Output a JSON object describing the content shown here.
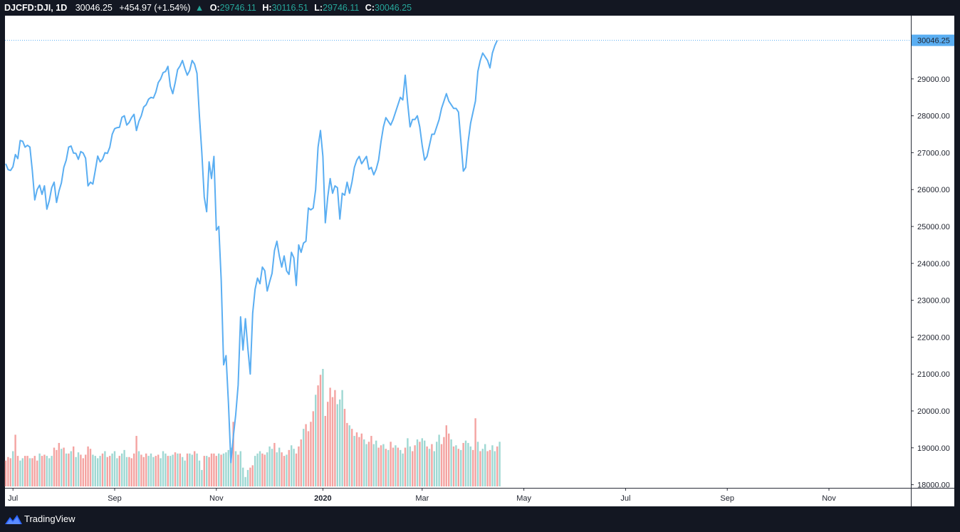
{
  "header": {
    "symbol": "DJCFD:DJI",
    "separator": ",",
    "timeframe": "1D",
    "last": "30046.25",
    "change": "+454.97 (+1.54%)",
    "o_label": "O:",
    "o_value": "29746.11",
    "h_label": "H:",
    "h_value": "30116.51",
    "l_label": "L:",
    "l_value": "29746.11",
    "c_label": "C:",
    "c_value": "30046.25"
  },
  "footer": {
    "brand": "TradingView",
    "logo_icon": "tradingview-logo-icon"
  },
  "colors": {
    "background": "#131722",
    "pane": "#ffffff",
    "line": "#5aaef2",
    "volume_up": "#9fd8d3",
    "volume_down": "#f4a3a1",
    "price_tag": "#5aaef2",
    "price_line": "#5aaef2",
    "axis_text": "#1e222d",
    "axis_line": "#2a2e39",
    "ohlc_value": "#26a69a"
  },
  "chart_data": {
    "type": "line",
    "series": [
      {
        "values": [
          26700,
          26540,
          26520,
          26620,
          26950,
          26840,
          27330,
          27310,
          27150,
          27200,
          27150,
          26510,
          25720,
          26000,
          26120,
          25870,
          26100,
          25470,
          25700,
          26050,
          26200,
          25650,
          25960,
          26180,
          26600,
          26800,
          27150,
          27180,
          26990,
          26980,
          26820,
          27030,
          26990,
          26850,
          26100,
          26200,
          26150,
          26520,
          26910,
          26750,
          26820,
          27000,
          26980,
          27150,
          27500,
          27650,
          27680,
          27690,
          27960,
          28000,
          27750,
          27820,
          27950,
          28040,
          27600,
          27850,
          28000,
          28240,
          28300,
          28450,
          28500,
          28480,
          28640,
          28900,
          29000,
          29170,
          29200,
          29340,
          28800,
          28600,
          28900,
          29250,
          29350,
          29500,
          29280,
          29100,
          29230,
          29500,
          29400,
          29150,
          28000,
          27000,
          25800,
          25400,
          26750,
          26300,
          26900,
          24900,
          25000,
          23550,
          21250,
          21500,
          20200,
          18600,
          19300,
          19900,
          20700,
          22550,
          21650,
          22500,
          21700,
          21000,
          22650,
          23300,
          23600,
          23450,
          23900,
          23800,
          23250,
          23500,
          23730,
          24350,
          24600,
          24200,
          23900,
          24200,
          23800,
          23700,
          24300,
          24150,
          23400,
          24500,
          24300,
          24550,
          24600,
          25500,
          25450,
          25500,
          26000,
          27150,
          27600,
          26900,
          25100,
          25800,
          26300,
          25900,
          26100,
          26050,
          25200,
          25900,
          25850,
          26200,
          25900,
          26200,
          26600,
          26800,
          26900,
          26700,
          26800,
          26900,
          26550,
          26600,
          26400,
          26550,
          26800,
          27300,
          27700,
          27950,
          27850,
          27750,
          27900,
          28100,
          28300,
          28500,
          28430,
          29100,
          28350,
          27700,
          27900,
          27900,
          28000,
          27700,
          27200,
          26800,
          26900,
          27200,
          27500,
          27500,
          27700,
          27900,
          28200,
          28400,
          28600,
          28400,
          28300,
          28200,
          28200,
          28100,
          27300,
          26500,
          26600,
          27300,
          27800,
          28100,
          28400,
          29200,
          29500,
          29700,
          29600,
          29500,
          29300,
          29700,
          29900,
          30046
        ]
      }
    ],
    "volume": [
      {
        "v": 0.22,
        "up": false
      },
      {
        "v": 0.25,
        "up": false
      },
      {
        "v": 0.24,
        "up": false
      },
      {
        "v": 0.3,
        "up": true
      },
      {
        "v": 0.44,
        "up": false
      },
      {
        "v": 0.26,
        "up": false
      },
      {
        "v": 0.22,
        "up": true
      },
      {
        "v": 0.24,
        "up": true
      },
      {
        "v": 0.26,
        "up": false
      },
      {
        "v": 0.26,
        "up": false
      },
      {
        "v": 0.24,
        "up": true
      },
      {
        "v": 0.24,
        "up": false
      },
      {
        "v": 0.26,
        "up": false
      },
      {
        "v": 0.22,
        "up": false
      },
      {
        "v": 0.28,
        "up": true
      },
      {
        "v": 0.26,
        "up": false
      },
      {
        "v": 0.27,
        "up": false
      },
      {
        "v": 0.26,
        "up": true
      },
      {
        "v": 0.24,
        "up": true
      },
      {
        "v": 0.26,
        "up": true
      },
      {
        "v": 0.33,
        "up": false
      },
      {
        "v": 0.31,
        "up": false
      },
      {
        "v": 0.37,
        "up": false
      },
      {
        "v": 0.32,
        "up": true
      },
      {
        "v": 0.33,
        "up": false
      },
      {
        "v": 0.28,
        "up": true
      },
      {
        "v": 0.28,
        "up": false
      },
      {
        "v": 0.3,
        "up": true
      },
      {
        "v": 0.34,
        "up": false
      },
      {
        "v": 0.25,
        "up": true
      },
      {
        "v": 0.29,
        "up": true
      },
      {
        "v": 0.27,
        "up": false
      },
      {
        "v": 0.24,
        "up": false
      },
      {
        "v": 0.27,
        "up": false
      },
      {
        "v": 0.34,
        "up": false
      },
      {
        "v": 0.32,
        "up": false
      },
      {
        "v": 0.27,
        "up": true
      },
      {
        "v": 0.26,
        "up": true
      },
      {
        "v": 0.24,
        "up": true
      },
      {
        "v": 0.26,
        "up": true
      },
      {
        "v": 0.28,
        "up": false
      },
      {
        "v": 0.3,
        "up": true
      },
      {
        "v": 0.25,
        "up": false
      },
      {
        "v": 0.26,
        "up": false
      },
      {
        "v": 0.28,
        "up": true
      },
      {
        "v": 0.3,
        "up": true
      },
      {
        "v": 0.24,
        "up": true
      },
      {
        "v": 0.26,
        "up": false
      },
      {
        "v": 0.28,
        "up": true
      },
      {
        "v": 0.31,
        "up": true
      },
      {
        "v": 0.25,
        "up": true
      },
      {
        "v": 0.25,
        "up": false
      },
      {
        "v": 0.24,
        "up": false
      },
      {
        "v": 0.28,
        "up": false
      },
      {
        "v": 0.43,
        "up": false
      },
      {
        "v": 0.3,
        "up": true
      },
      {
        "v": 0.27,
        "up": false
      },
      {
        "v": 0.25,
        "up": false
      },
      {
        "v": 0.28,
        "up": false
      },
      {
        "v": 0.26,
        "up": true
      },
      {
        "v": 0.28,
        "up": true
      },
      {
        "v": 0.25,
        "up": true
      },
      {
        "v": 0.26,
        "up": false
      },
      {
        "v": 0.27,
        "up": false
      },
      {
        "v": 0.24,
        "up": true
      },
      {
        "v": 0.3,
        "up": true
      },
      {
        "v": 0.28,
        "up": true
      },
      {
        "v": 0.26,
        "up": false
      },
      {
        "v": 0.26,
        "up": true
      },
      {
        "v": 0.27,
        "up": true
      },
      {
        "v": 0.29,
        "up": false
      },
      {
        "v": 0.28,
        "up": true
      },
      {
        "v": 0.28,
        "up": false
      },
      {
        "v": 0.25,
        "up": true
      },
      {
        "v": 0.22,
        "up": true
      },
      {
        "v": 0.28,
        "up": false
      },
      {
        "v": 0.28,
        "up": true
      },
      {
        "v": 0.27,
        "up": true
      },
      {
        "v": 0.3,
        "up": false
      },
      {
        "v": 0.28,
        "up": true
      },
      {
        "v": 0.22,
        "up": true
      },
      {
        "v": 0.14,
        "up": true
      },
      {
        "v": 0.26,
        "up": false
      },
      {
        "v": 0.26,
        "up": true
      },
      {
        "v": 0.25,
        "up": false
      },
      {
        "v": 0.28,
        "up": false
      },
      {
        "v": 0.28,
        "up": false
      },
      {
        "v": 0.26,
        "up": false
      },
      {
        "v": 0.28,
        "up": true
      },
      {
        "v": 0.27,
        "up": false
      },
      {
        "v": 0.28,
        "up": true
      },
      {
        "v": 0.29,
        "up": true
      },
      {
        "v": 0.31,
        "up": true
      },
      {
        "v": 0.33,
        "up": true
      },
      {
        "v": 0.55,
        "up": false
      },
      {
        "v": 0.3,
        "up": true
      },
      {
        "v": 0.27,
        "up": false
      },
      {
        "v": 0.3,
        "up": true
      },
      {
        "v": 0.16,
        "up": true
      },
      {
        "v": 0.08,
        "up": true
      },
      {
        "v": 0.14,
        "up": true
      },
      {
        "v": 0.16,
        "up": false
      },
      {
        "v": 0.18,
        "up": false
      },
      {
        "v": 0.26,
        "up": true
      },
      {
        "v": 0.28,
        "up": true
      },
      {
        "v": 0.3,
        "up": true
      },
      {
        "v": 0.28,
        "up": false
      },
      {
        "v": 0.27,
        "up": false
      },
      {
        "v": 0.29,
        "up": true
      },
      {
        "v": 0.34,
        "up": true
      },
      {
        "v": 0.32,
        "up": true
      },
      {
        "v": 0.37,
        "up": false
      },
      {
        "v": 0.29,
        "up": true
      },
      {
        "v": 0.33,
        "up": true
      },
      {
        "v": 0.29,
        "up": false
      },
      {
        "v": 0.26,
        "up": false
      },
      {
        "v": 0.27,
        "up": true
      },
      {
        "v": 0.31,
        "up": false
      },
      {
        "v": 0.35,
        "up": true
      },
      {
        "v": 0.32,
        "up": true
      },
      {
        "v": 0.28,
        "up": false
      },
      {
        "v": 0.34,
        "up": false
      },
      {
        "v": 0.4,
        "up": false
      },
      {
        "v": 0.49,
        "up": true
      },
      {
        "v": 0.53,
        "up": false
      },
      {
        "v": 0.47,
        "up": false
      },
      {
        "v": 0.55,
        "up": false
      },
      {
        "v": 0.64,
        "up": false
      },
      {
        "v": 0.78,
        "up": true
      },
      {
        "v": 0.86,
        "up": false
      },
      {
        "v": 0.95,
        "up": false
      },
      {
        "v": 1.0,
        "up": true
      },
      {
        "v": 0.6,
        "up": false
      },
      {
        "v": 0.72,
        "up": false
      },
      {
        "v": 0.84,
        "up": false
      },
      {
        "v": 0.76,
        "up": false
      },
      {
        "v": 0.82,
        "up": false
      },
      {
        "v": 0.7,
        "up": true
      },
      {
        "v": 0.74,
        "up": true
      },
      {
        "v": 0.82,
        "up": true
      },
      {
        "v": 0.66,
        "up": false
      },
      {
        "v": 0.54,
        "up": false
      },
      {
        "v": 0.52,
        "up": true
      },
      {
        "v": 0.49,
        "up": false
      },
      {
        "v": 0.43,
        "up": true
      },
      {
        "v": 0.46,
        "up": false
      },
      {
        "v": 0.42,
        "up": false
      },
      {
        "v": 0.45,
        "up": false
      },
      {
        "v": 0.4,
        "up": true
      },
      {
        "v": 0.36,
        "up": true
      },
      {
        "v": 0.38,
        "up": false
      },
      {
        "v": 0.43,
        "up": false
      },
      {
        "v": 0.36,
        "up": true
      },
      {
        "v": 0.39,
        "up": true
      },
      {
        "v": 0.33,
        "up": false
      },
      {
        "v": 0.35,
        "up": false
      },
      {
        "v": 0.36,
        "up": true
      },
      {
        "v": 0.32,
        "up": false
      },
      {
        "v": 0.31,
        "up": true
      },
      {
        "v": 0.38,
        "up": false
      },
      {
        "v": 0.33,
        "up": false
      },
      {
        "v": 0.35,
        "up": true
      },
      {
        "v": 0.33,
        "up": false
      },
      {
        "v": 0.31,
        "up": true
      },
      {
        "v": 0.28,
        "up": true
      },
      {
        "v": 0.33,
        "up": false
      },
      {
        "v": 0.41,
        "up": true
      },
      {
        "v": 0.34,
        "up": true
      },
      {
        "v": 0.3,
        "up": false
      },
      {
        "v": 0.35,
        "up": false
      },
      {
        "v": 0.4,
        "up": true
      },
      {
        "v": 0.38,
        "up": false
      },
      {
        "v": 0.41,
        "up": true
      },
      {
        "v": 0.39,
        "up": true
      },
      {
        "v": 0.34,
        "up": false
      },
      {
        "v": 0.32,
        "up": true
      },
      {
        "v": 0.36,
        "up": false
      },
      {
        "v": 0.3,
        "up": true
      },
      {
        "v": 0.38,
        "up": true
      },
      {
        "v": 0.44,
        "up": true
      },
      {
        "v": 0.36,
        "up": false
      },
      {
        "v": 0.42,
        "up": false
      },
      {
        "v": 0.52,
        "up": false
      },
      {
        "v": 0.45,
        "up": false
      },
      {
        "v": 0.4,
        "up": true
      },
      {
        "v": 0.34,
        "up": false
      },
      {
        "v": 0.35,
        "up": true
      },
      {
        "v": 0.32,
        "up": false
      },
      {
        "v": 0.31,
        "up": true
      },
      {
        "v": 0.37,
        "up": false
      },
      {
        "v": 0.39,
        "up": true
      },
      {
        "v": 0.37,
        "up": true
      },
      {
        "v": 0.34,
        "up": true
      },
      {
        "v": 0.31,
        "up": false
      },
      {
        "v": 0.58,
        "up": false
      },
      {
        "v": 0.38,
        "up": true
      },
      {
        "v": 0.3,
        "up": false
      },
      {
        "v": 0.32,
        "up": true
      },
      {
        "v": 0.36,
        "up": true
      },
      {
        "v": 0.3,
        "up": false
      },
      {
        "v": 0.31,
        "up": false
      },
      {
        "v": 0.35,
        "up": true
      },
      {
        "v": 0.3,
        "up": true
      },
      {
        "v": 0.34,
        "up": false
      },
      {
        "v": 0.38,
        "up": true
      }
    ],
    "x_ticks": [
      {
        "label": "Jul",
        "i": 3,
        "bold": false
      },
      {
        "label": "Sep",
        "i": 45,
        "bold": false
      },
      {
        "label": "Nov",
        "i": 87,
        "bold": false
      },
      {
        "label": "2020",
        "i": 131,
        "bold": true
      },
      {
        "label": "Mar",
        "i": 172,
        "bold": false
      },
      {
        "label": "May",
        "i": 214,
        "bold": false
      },
      {
        "label": "Jul",
        "i": 256,
        "bold": false
      },
      {
        "label": "Sep",
        "i": 298,
        "bold": false
      },
      {
        "label": "Nov",
        "i": 340,
        "bold": false
      }
    ],
    "y_ticks": [
      "18000.00",
      "19000.00",
      "20000.00",
      "21000.00",
      "22000.00",
      "23000.00",
      "24000.00",
      "25000.00",
      "26000.00",
      "27000.00",
      "28000.00",
      "29000.00"
    ],
    "y_tick_values": [
      18000,
      19000,
      20000,
      21000,
      22000,
      23000,
      24000,
      25000,
      26000,
      27000,
      28000,
      29000
    ],
    "last_price_label": "30046.25",
    "last_price": 30046.25,
    "ylim": [
      18000,
      30046.25
    ],
    "grid": false
  }
}
